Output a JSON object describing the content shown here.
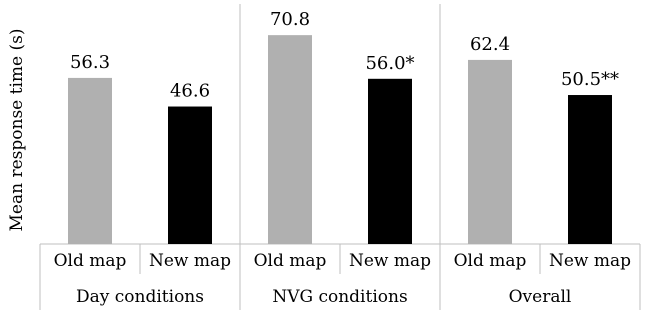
{
  "chart_data": {
    "type": "bar",
    "ylabel": "Mean response time (s)",
    "ylim": [
      0,
      80
    ],
    "grid": false,
    "legend": "none",
    "groups": [
      {
        "label": "Day conditions",
        "bars": [
          {
            "category": "Old map",
            "value": 56.3,
            "label": "56.3",
            "color": "#b0b0b0"
          },
          {
            "category": "New map",
            "value": 46.6,
            "label": "46.6",
            "color": "#000000"
          }
        ]
      },
      {
        "label": "NVG conditions",
        "bars": [
          {
            "category": "Old map",
            "value": 70.8,
            "label": "70.8",
            "color": "#b0b0b0"
          },
          {
            "category": "New map",
            "value": 56.0,
            "label": "56.0*",
            "color": "#000000"
          }
        ]
      },
      {
        "label": "Overall",
        "bars": [
          {
            "category": "Old map",
            "value": 62.4,
            "label": "62.4",
            "color": "#b0b0b0"
          },
          {
            "category": "New map",
            "value": 50.5,
            "label": "50.5**",
            "color": "#000000"
          }
        ]
      }
    ]
  }
}
